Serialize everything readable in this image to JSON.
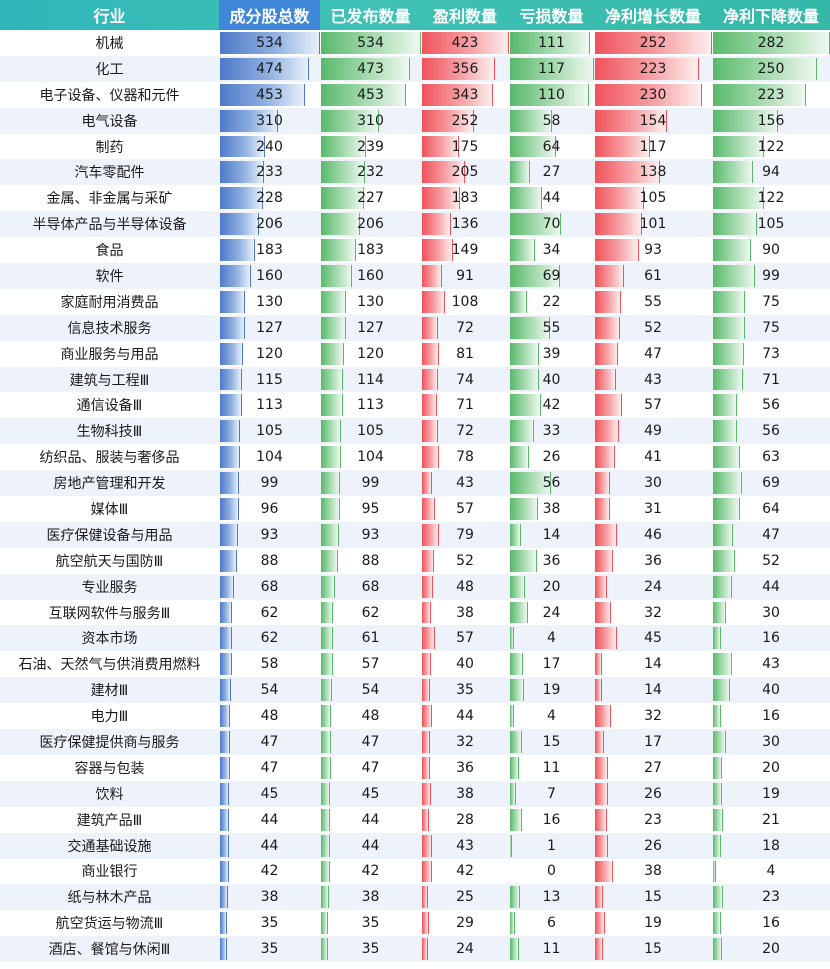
{
  "colors": {
    "header": "#3fc1b6",
    "count_bar": "#4e79c9",
    "green_bar": "#58b96a",
    "red_bar": "#f0525b",
    "row_alt": "#eef3fb"
  },
  "headers": [
    "行业",
    "成分股总数",
    "已发布数量",
    "盈利数量",
    "亏损数量",
    "净利增长数量",
    "净利下降数量"
  ],
  "rows": [
    {
      "name": "机械",
      "total": 534,
      "published": 534,
      "profit": 423,
      "loss": 111,
      "growth": 252,
      "decline": 282
    },
    {
      "name": "化工",
      "total": 474,
      "published": 473,
      "profit": 356,
      "loss": 117,
      "growth": 223,
      "decline": 250
    },
    {
      "name": "电子设备、仪器和元件",
      "total": 453,
      "published": 453,
      "profit": 343,
      "loss": 110,
      "growth": 230,
      "decline": 223
    },
    {
      "name": "电气设备",
      "total": 310,
      "published": 310,
      "profit": 252,
      "loss": 58,
      "growth": 154,
      "decline": 156
    },
    {
      "name": "制药",
      "total": 240,
      "published": 239,
      "profit": 175,
      "loss": 64,
      "growth": 117,
      "decline": 122
    },
    {
      "name": "汽车零配件",
      "total": 233,
      "published": 232,
      "profit": 205,
      "loss": 27,
      "growth": 138,
      "decline": 94
    },
    {
      "name": "金属、非金属与采矿",
      "total": 228,
      "published": 227,
      "profit": 183,
      "loss": 44,
      "growth": 105,
      "decline": 122
    },
    {
      "name": "半导体产品与半导体设备",
      "total": 206,
      "published": 206,
      "profit": 136,
      "loss": 70,
      "growth": 101,
      "decline": 105
    },
    {
      "name": "食品",
      "total": 183,
      "published": 183,
      "profit": 149,
      "loss": 34,
      "growth": 93,
      "decline": 90
    },
    {
      "name": "软件",
      "total": 160,
      "published": 160,
      "profit": 91,
      "loss": 69,
      "growth": 61,
      "decline": 99
    },
    {
      "name": "家庭耐用消费品",
      "total": 130,
      "published": 130,
      "profit": 108,
      "loss": 22,
      "growth": 55,
      "decline": 75
    },
    {
      "name": "信息技术服务",
      "total": 127,
      "published": 127,
      "profit": 72,
      "loss": 55,
      "growth": 52,
      "decline": 75
    },
    {
      "name": "商业服务与用品",
      "total": 120,
      "published": 120,
      "profit": 81,
      "loss": 39,
      "growth": 47,
      "decline": 73
    },
    {
      "name": "建筑与工程Ⅲ",
      "total": 115,
      "published": 114,
      "profit": 74,
      "loss": 40,
      "growth": 43,
      "decline": 71
    },
    {
      "name": "通信设备Ⅲ",
      "total": 113,
      "published": 113,
      "profit": 71,
      "loss": 42,
      "growth": 57,
      "decline": 56
    },
    {
      "name": "生物科技Ⅲ",
      "total": 105,
      "published": 105,
      "profit": 72,
      "loss": 33,
      "growth": 49,
      "decline": 56
    },
    {
      "name": "纺织品、服装与奢侈品",
      "total": 104,
      "published": 104,
      "profit": 78,
      "loss": 26,
      "growth": 41,
      "decline": 63
    },
    {
      "name": "房地产管理和开发",
      "total": 99,
      "published": 99,
      "profit": 43,
      "loss": 56,
      "growth": 30,
      "decline": 69
    },
    {
      "name": "媒体Ⅲ",
      "total": 96,
      "published": 95,
      "profit": 57,
      "loss": 38,
      "growth": 31,
      "decline": 64
    },
    {
      "name": "医疗保健设备与用品",
      "total": 93,
      "published": 93,
      "profit": 79,
      "loss": 14,
      "growth": 46,
      "decline": 47
    },
    {
      "name": "航空航天与国防Ⅲ",
      "total": 88,
      "published": 88,
      "profit": 52,
      "loss": 36,
      "growth": 36,
      "decline": 52
    },
    {
      "name": "专业服务",
      "total": 68,
      "published": 68,
      "profit": 48,
      "loss": 20,
      "growth": 24,
      "decline": 44
    },
    {
      "name": "互联网软件与服务Ⅲ",
      "total": 62,
      "published": 62,
      "profit": 38,
      "loss": 24,
      "growth": 32,
      "decline": 30
    },
    {
      "name": "资本市场",
      "total": 62,
      "published": 61,
      "profit": 57,
      "loss": 4,
      "growth": 45,
      "decline": 16
    },
    {
      "name": "石油、天然气与供消费用燃料",
      "total": 58,
      "published": 57,
      "profit": 40,
      "loss": 17,
      "growth": 14,
      "decline": 43
    },
    {
      "name": "建材Ⅲ",
      "total": 54,
      "published": 54,
      "profit": 35,
      "loss": 19,
      "growth": 14,
      "decline": 40
    },
    {
      "name": "电力Ⅲ",
      "total": 48,
      "published": 48,
      "profit": 44,
      "loss": 4,
      "growth": 32,
      "decline": 16
    },
    {
      "name": "医疗保健提供商与服务",
      "total": 47,
      "published": 47,
      "profit": 32,
      "loss": 15,
      "growth": 17,
      "decline": 30
    },
    {
      "name": "容器与包装",
      "total": 47,
      "published": 47,
      "profit": 36,
      "loss": 11,
      "growth": 27,
      "decline": 20
    },
    {
      "name": "饮料",
      "total": 45,
      "published": 45,
      "profit": 38,
      "loss": 7,
      "growth": 26,
      "decline": 19
    },
    {
      "name": "建筑产品Ⅲ",
      "total": 44,
      "published": 44,
      "profit": 28,
      "loss": 16,
      "growth": 23,
      "decline": 21
    },
    {
      "name": "交通基础设施",
      "total": 44,
      "published": 44,
      "profit": 43,
      "loss": 1,
      "growth": 26,
      "decline": 18
    },
    {
      "name": "商业银行",
      "total": 42,
      "published": 42,
      "profit": 42,
      "loss": 0,
      "growth": 38,
      "decline": 4
    },
    {
      "name": "纸与林木产品",
      "total": 38,
      "published": 38,
      "profit": 25,
      "loss": 13,
      "growth": 15,
      "decline": 23
    },
    {
      "name": "航空货运与物流Ⅲ",
      "total": 35,
      "published": 35,
      "profit": 29,
      "loss": 6,
      "growth": 19,
      "decline": 16
    },
    {
      "name": "酒店、餐馆与休闲Ⅲ",
      "total": 35,
      "published": 35,
      "profit": 24,
      "loss": 11,
      "growth": 15,
      "decline": 20
    }
  ]
}
